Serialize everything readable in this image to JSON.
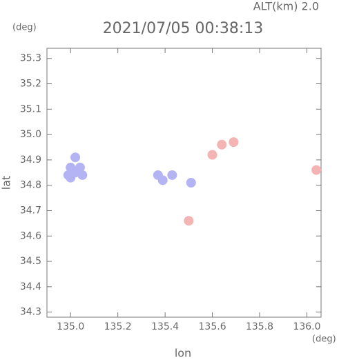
{
  "chart_data": {
    "type": "scatter",
    "title": "2021/07/05 00:38:13",
    "subtitle": "ALT(km) 2.0",
    "x_label": "lon",
    "y_label": "lat",
    "x_unit": "(deg)",
    "y_unit": "(deg)",
    "xlim": [
      134.9,
      136.06
    ],
    "ylim": [
      34.28,
      35.34
    ],
    "xticks": [
      {
        "value": 135.0,
        "label": "135.0"
      },
      135.2,
      135.4,
      135.6,
      135.8,
      {
        "value": 136.0,
        "label": "136.0"
      }
    ],
    "yticks": [
      34.3,
      34.4,
      34.5,
      34.6,
      34.7,
      34.8,
      34.9,
      {
        "value": 35.0,
        "label": "35.0"
      },
      35.1,
      35.2,
      35.3
    ],
    "series": [
      {
        "color": "#b4b4f4",
        "x": [
          135.0,
          135.02,
          135.0,
          135.04,
          135.02,
          134.99,
          135.05,
          135.37,
          135.39,
          135.43,
          135.51
        ],
        "y": [
          34.83,
          34.85,
          34.87,
          34.87,
          34.91,
          34.84,
          34.84,
          34.84,
          34.82,
          34.84,
          34.81
        ]
      },
      {
        "color": "#f4b4b4",
        "x": [
          135.6,
          135.64,
          135.69,
          135.5,
          136.04
        ],
        "y": [
          34.92,
          34.96,
          34.97,
          34.66,
          34.86
        ]
      }
    ]
  }
}
